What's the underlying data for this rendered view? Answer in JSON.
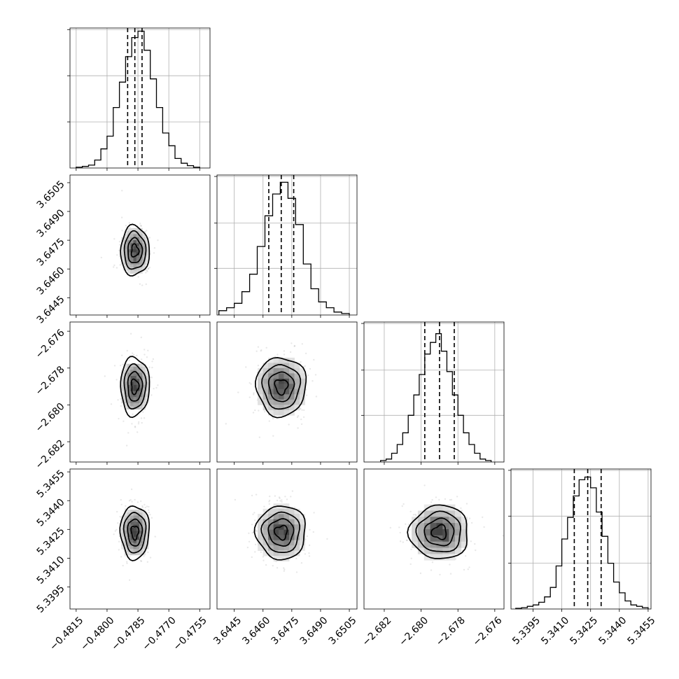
{
  "chart_data": {
    "type": "corner",
    "parameters": [
      {
        "range": [
          -0.4818,
          -0.475
        ],
        "ticks": [
          -0.4815,
          -0.48,
          -0.4785,
          -0.477,
          -0.4755
        ],
        "tick_labels": [
          "−0.4815",
          "−0.4800",
          "−0.4785",
          "−0.4770",
          "−0.4755"
        ],
        "median": -0.47865,
        "quantiles": [
          -0.479,
          -0.47865,
          -0.4783
        ],
        "hist": {
          "edges": [
            -0.4815,
            -0.4812,
            -0.4809,
            -0.4806,
            -0.4803,
            -0.48,
            -0.4797,
            -0.4794,
            -0.4791,
            -0.4788,
            -0.4785,
            -0.4782,
            -0.4779,
            -0.4776,
            -0.4773,
            -0.477,
            -0.4767,
            -0.4764,
            -0.4761,
            -0.4758,
            -0.4755
          ],
          "counts": [
            0.5,
            1,
            1.8,
            5,
            12,
            20,
            38,
            54,
            70,
            82,
            86,
            74,
            56,
            38,
            22,
            14,
            6,
            3,
            1.5,
            0.5
          ],
          "max": 88
        }
      },
      {
        "range": [
          3.6436,
          3.6509
        ],
        "ticks": [
          3.6445,
          3.646,
          3.6475,
          3.649,
          3.6505
        ],
        "tick_labels": [
          "3.6445",
          "3.6460",
          "3.6475",
          "3.6490",
          "3.6505"
        ],
        "median": 3.64695,
        "quantiles": [
          3.6463,
          3.64695,
          3.6476
        ],
        "hist": {
          "edges": [
            3.6437,
            3.6441,
            3.6445,
            3.6449,
            3.6453,
            3.6457,
            3.6461,
            3.6465,
            3.6469,
            3.6473,
            3.6477,
            3.6481,
            3.6485,
            3.6489,
            3.6493,
            3.6497,
            3.6501,
            3.6505
          ],
          "counts": [
            3,
            5,
            8,
            16,
            28,
            47,
            68,
            83,
            91,
            80,
            62,
            35,
            18,
            9,
            5,
            2,
            1
          ],
          "max": 96
        }
      },
      {
        "range": [
          -2.6831,
          -2.6755
        ],
        "ticks": [
          -2.682,
          -2.68,
          -2.678,
          -2.676
        ],
        "tick_labels": [
          "−2.682",
          "−2.680",
          "−2.678",
          "−2.676"
        ],
        "median": -2.679,
        "quantiles": [
          -2.6798,
          -2.679,
          -2.6782
        ],
        "hist": {
          "edges": [
            -2.6822,
            -2.6819,
            -2.6816,
            -2.6813,
            -2.681,
            -2.6807,
            -2.6804,
            -2.6801,
            -2.6798,
            -2.6795,
            -2.6792,
            -2.6789,
            -2.6786,
            -2.6783,
            -2.678,
            -2.6777,
            -2.6774,
            -2.6771,
            -2.6768,
            -2.6765,
            -2.6762
          ],
          "counts": [
            1,
            2,
            6,
            12,
            20,
            32,
            46,
            60,
            74,
            82,
            88,
            76,
            62,
            46,
            32,
            20,
            12,
            6,
            2,
            1
          ],
          "max": 96
        }
      },
      {
        "range": [
          5.33835,
          5.34565
        ],
        "ticks": [
          5.3395,
          5.341,
          5.3425,
          5.344,
          5.3455
        ],
        "tick_labels": [
          "5.3395",
          "5.3410",
          "5.3425",
          "5.3440",
          "5.3455"
        ],
        "median": 5.34235,
        "quantiles": [
          5.34165,
          5.34235,
          5.34305
        ],
        "hist": {
          "edges": [
            5.3386,
            5.3389,
            5.3392,
            5.3395,
            5.3398,
            5.3401,
            5.3404,
            5.3407,
            5.341,
            5.3413,
            5.3416,
            5.3419,
            5.3422,
            5.3425,
            5.3428,
            5.3431,
            5.3434,
            5.3437,
            5.344,
            5.3443,
            5.3446,
            5.3449,
            5.3452,
            5.3455
          ],
          "counts": [
            0.5,
            1,
            2,
            3,
            5,
            9,
            16,
            32,
            52,
            68,
            84,
            96,
            98,
            90,
            72,
            54,
            34,
            20,
            12,
            6,
            3,
            2,
            1
          ],
          "max": 104
        }
      }
    ],
    "contour_levels_sigma": [
      0.5,
      1.0,
      1.5,
      2.0
    ],
    "grid": true,
    "legend": "none"
  }
}
